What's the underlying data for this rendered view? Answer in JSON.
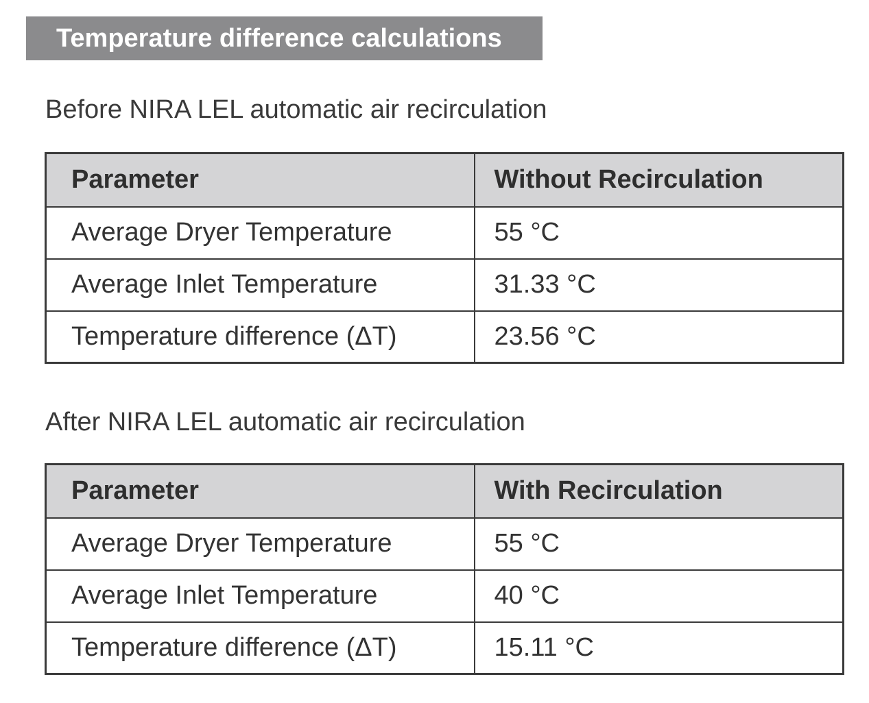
{
  "banner": {
    "title": "Temperature difference calculations"
  },
  "sections": [
    {
      "heading": "Before NIRA LEL automatic air recirculation",
      "table": {
        "columns": [
          "Parameter",
          "Without Recirculation"
        ],
        "rows": [
          {
            "parameter": "Average Dryer Temperature",
            "value": "55 °C"
          },
          {
            "parameter": "Average Inlet Temperature",
            "value": "31.33 °C"
          },
          {
            "parameter": "Temperature difference (ΔT)",
            "value": "23.56 °C"
          }
        ]
      }
    },
    {
      "heading": "After NIRA LEL automatic air recirculation",
      "table": {
        "columns": [
          "Parameter",
          "With Recirculation"
        ],
        "rows": [
          {
            "parameter": "Average Dryer Temperature",
            "value": "55 °C"
          },
          {
            "parameter": "Average Inlet Temperature",
            "value": "40 °C"
          },
          {
            "parameter": "Temperature difference (ΔT)",
            "value": "15.11 °C"
          }
        ]
      }
    }
  ],
  "colors": {
    "banner_background": "#8b8b8d",
    "banner_text": "#ffffff",
    "table_header_background": "#d4d4d6",
    "table_border": "#3a3a3a",
    "body_text": "#333333",
    "page_background": "#ffffff"
  }
}
